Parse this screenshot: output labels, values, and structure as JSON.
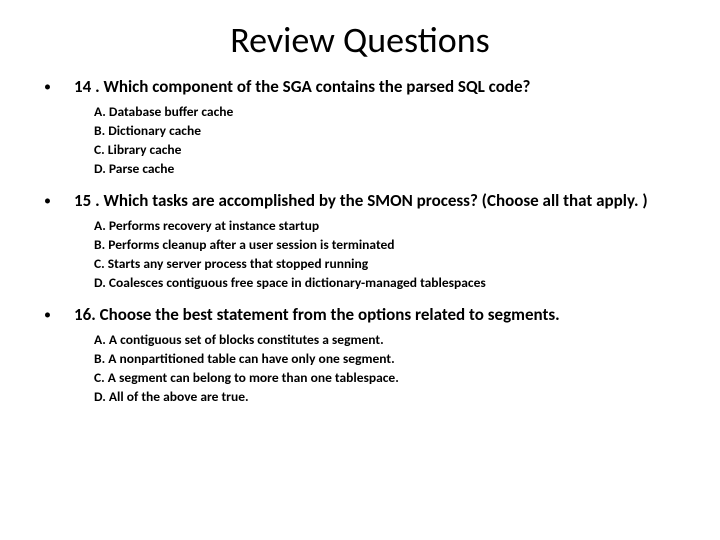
{
  "title": "Review Questions",
  "questions": [
    {
      "num": "14 .",
      "text": "Which component of the SGA contains the parsed SQL code?",
      "options": [
        "A. Database buffer cache",
        "B. Dictionary cache",
        "C. Library cache",
        "D. Parse cache"
      ]
    },
    {
      "num": "15 .",
      "text": "Which tasks are accomplished by the SMON process? (Choose all that apply. )",
      "options": [
        "A. Performs recovery at instance startup",
        "B. Performs cleanup after a user session is terminated",
        "C. Starts any server process that stopped running",
        "D. Coalesces contiguous free space in dictionary-managed tablespaces"
      ]
    },
    {
      "num": "16.",
      "text": "Choose the best statement from the options related to segments.",
      "options": [
        "A. A contiguous set of blocks constitutes a segment.",
        "B. A nonpartitioned table can have only one segment.",
        "C. A segment can belong to more than one tablespace.",
        "D. All of the above are true."
      ]
    }
  ]
}
